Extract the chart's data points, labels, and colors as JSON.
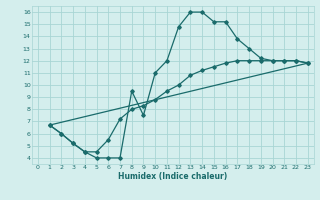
{
  "xlabel": "Humidex (Indice chaleur)",
  "bg_color": "#d4eeed",
  "line_color": "#1a6b6b",
  "grid_color": "#a8d5d4",
  "xlim": [
    -0.5,
    23.5
  ],
  "ylim": [
    3.5,
    16.5
  ],
  "xticks": [
    0,
    1,
    2,
    3,
    4,
    5,
    6,
    7,
    8,
    9,
    10,
    11,
    12,
    13,
    14,
    15,
    16,
    17,
    18,
    19,
    20,
    21,
    22,
    23
  ],
  "yticks": [
    4,
    5,
    6,
    7,
    8,
    9,
    10,
    11,
    12,
    13,
    14,
    15,
    16
  ],
  "line1_x": [
    1,
    2,
    3,
    4,
    5,
    6,
    7,
    8,
    9,
    10,
    11,
    12,
    13,
    14,
    15,
    16,
    17,
    18,
    19,
    20,
    21,
    22,
    23
  ],
  "line1_y": [
    6.7,
    6.0,
    5.2,
    4.5,
    4.0,
    4.0,
    4.0,
    9.5,
    7.5,
    11.0,
    12.0,
    14.8,
    16.0,
    16.0,
    15.2,
    15.2,
    13.8,
    13.0,
    12.2,
    12.0,
    12.0,
    12.0,
    11.8
  ],
  "line2_x": [
    1,
    2,
    3,
    4,
    5,
    6,
    7,
    8,
    9,
    10,
    11,
    12,
    13,
    14,
    15,
    16,
    17,
    18,
    19,
    20,
    21,
    22,
    23
  ],
  "line2_y": [
    6.7,
    6.0,
    5.2,
    4.5,
    4.5,
    5.5,
    7.2,
    8.0,
    8.3,
    8.8,
    9.5,
    10.0,
    10.8,
    11.2,
    11.5,
    11.8,
    12.0,
    12.0,
    12.0,
    12.0,
    12.0,
    12.0,
    11.8
  ],
  "line3_x": [
    1,
    23
  ],
  "line3_y": [
    6.7,
    11.8
  ]
}
